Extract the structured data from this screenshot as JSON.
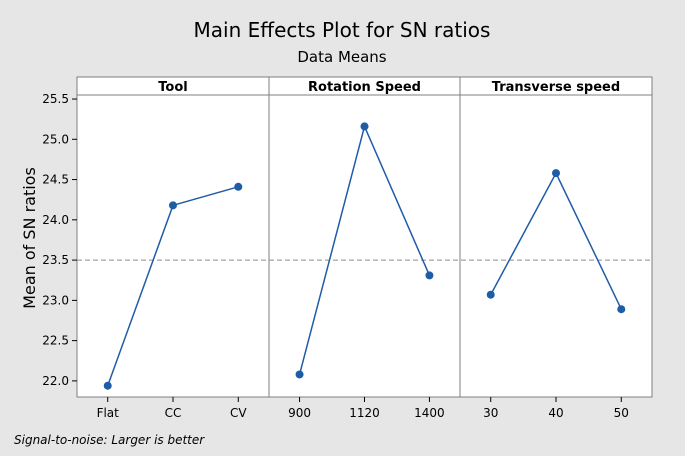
{
  "chart_data": {
    "type": "line",
    "title": "Main Effects Plot for SN ratios",
    "subtitle": "Data Means",
    "ylabel": "Mean of SN ratios",
    "ylim": [
      21.8,
      25.55
    ],
    "yticks": [
      22.0,
      22.5,
      23.0,
      23.5,
      24.0,
      24.5,
      25.0,
      25.5
    ],
    "reference_mean": 23.5,
    "footnote": "Signal-to-noise: Larger is better",
    "colors": {
      "line": "#1f5ca8",
      "marker": "#1f5ca8",
      "reference": "#8c8c8c",
      "panel_bg": "#ffffff",
      "page_bg": "#e6e6e6",
      "strip_bg": "#ffffff"
    },
    "panels": [
      {
        "factor": "Tool",
        "categories": [
          "Flat",
          "CC",
          "CV"
        ],
        "values": [
          21.94,
          24.18,
          24.41
        ]
      },
      {
        "factor": "Rotation Speed",
        "categories": [
          "900",
          "1120",
          "1400"
        ],
        "values": [
          22.08,
          25.16,
          23.31
        ]
      },
      {
        "factor": "Transverse speed",
        "categories": [
          "30",
          "40",
          "50"
        ],
        "values": [
          23.07,
          24.58,
          22.89
        ]
      }
    ]
  }
}
